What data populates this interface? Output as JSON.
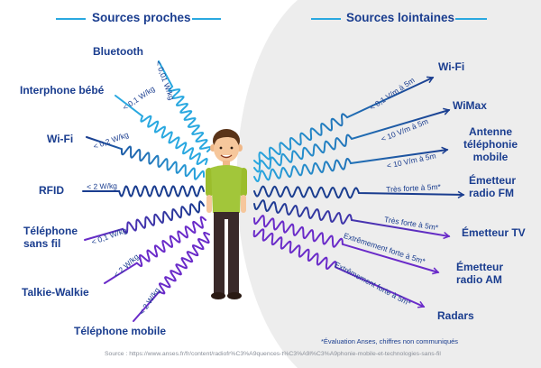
{
  "headings": {
    "near": "Sources proches",
    "far": "Sources lointaines"
  },
  "near_sources": [
    {
      "label": "Bluetooth",
      "value": "< 0,01 W/kg"
    },
    {
      "label": "Interphone bébé",
      "value": "< 0,1 W/kg"
    },
    {
      "label": "Wi-Fi",
      "value": "< 0,2 W/kg"
    },
    {
      "label": "RFID",
      "value": "< 2 W/kg"
    },
    {
      "label": "Téléphone sans fil",
      "value": "< 0,1 W/kg"
    },
    {
      "label": "Talkie-Walkie",
      "value": "< 2 W/kg"
    },
    {
      "label": "Téléphone mobile",
      "value": "< 2 W/kg"
    }
  ],
  "far_sources": [
    {
      "label": "Wi-Fi",
      "value": "< 0,1 V/m à 5m"
    },
    {
      "label": "WiMax",
      "value": "< 10 V/m à 5m"
    },
    {
      "label": "Antenne téléphonie mobile",
      "value": "< 10 V/m à 5m"
    },
    {
      "label": "Émetteur radio FM",
      "value": "Très forte à 5m*"
    },
    {
      "label": "Émetteur TV",
      "value": "Très forte à 5m*"
    },
    {
      "label": "Émetteur radio AM",
      "value": "Extrêmement forte à 5m*"
    },
    {
      "label": "Radars",
      "value": "Extrêmement forte à 5m*"
    }
  ],
  "footnote": "*Évaluation Anses, chiffres non communiqués",
  "source": "Source : https://www.anses.fr/fr/content/radiofr%C3%A9quences-t%C3%A9l%C3%A9phonie-mobile-et-technologies-sans-fil",
  "colors": {
    "cyan": "#29a8e0",
    "navy": "#1a3d8f",
    "purple": "#6a2bc9",
    "grey": "#ededed"
  }
}
